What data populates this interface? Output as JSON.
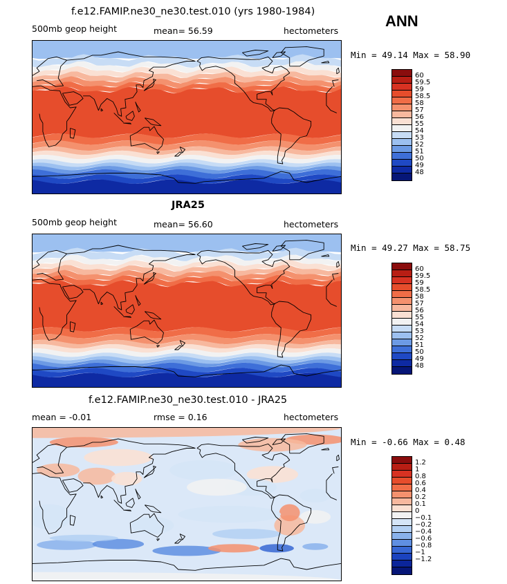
{
  "annual_label": "ANN",
  "panels": [
    {
      "title": "f.e12.FAMIP.ne30_ne30.test.010 (yrs 1980-1984)",
      "title_bold": false,
      "left_text": "500mb geop height",
      "center_text": "mean=  56.59",
      "right_text": "hectometers",
      "minmax": "Min =  49.14 Max =  58.90",
      "legend_labels": [
        "60",
        "59.5",
        "59",
        "58.5",
        "58",
        "57",
        "56",
        "55",
        "54",
        "53",
        "52",
        "51",
        "50",
        "49",
        "48"
      ]
    },
    {
      "title": "JRA25",
      "title_bold": true,
      "left_text": "500mb geop height",
      "center_text": "mean=  56.60",
      "right_text": "hectometers",
      "minmax": "Min =  49.27 Max =  58.75",
      "legend_labels": [
        "60",
        "59.5",
        "59",
        "58.5",
        "58",
        "57",
        "56",
        "55",
        "54",
        "53",
        "52",
        "51",
        "50",
        "49",
        "48"
      ]
    },
    {
      "title": "f.e12.FAMIP.ne30_ne30.test.010 - JRA25",
      "title_bold": false,
      "left_text": "mean =  -0.01",
      "center_text": "rmse =   0.16",
      "right_text": "hectometers",
      "minmax": "Min =  -0.66 Max =   0.48",
      "legend_labels": [
        "1.2",
        "1",
        "0.8",
        "0.6",
        "0.4",
        "0.2",
        "0.1",
        "0",
        "−0.1",
        "−0.2",
        "−0.4",
        "−0.6",
        "−0.8",
        "−1",
        "−1.2"
      ]
    }
  ],
  "colors": {
    "palette_height": [
      "#8a0d0d",
      "#b81e14",
      "#d73222",
      "#e64d2c",
      "#f06d47",
      "#f4916e",
      "#f7b89e",
      "#fae0d3",
      "#f2f2f2",
      "#c7dcf5",
      "#9cc0f0",
      "#6c9ae4",
      "#3e6fd8",
      "#1f49c4",
      "#0e2aa3",
      "#061677"
    ],
    "palette_diff": [
      "#8a0d0d",
      "#b81e14",
      "#d73222",
      "#e64d2c",
      "#f06d47",
      "#f4916e",
      "#f7b89e",
      "#fbe0d2",
      "#f2f2f2",
      "#d5e5f7",
      "#b3d0f3",
      "#89b2ec",
      "#5f8fe2",
      "#3767d4",
      "#1b43bf",
      "#0b259a",
      "#061677"
    ],
    "legend_swatches_height": [
      "#8a0d0d",
      "#b81e14",
      "#d73222",
      "#e64d2c",
      "#f06d47",
      "#f4916e",
      "#f7b89e",
      "#fae0d3",
      "#f2f2f2",
      "#c7dcf5",
      "#9cc0f0",
      "#6c9ae4",
      "#3e6fd8",
      "#1f49c4",
      "#0e2aa3",
      "#061677"
    ],
    "legend_swatches_diff": [
      "#8a0d0d",
      "#b81e14",
      "#d73222",
      "#e64d2c",
      "#f06d47",
      "#f4916e",
      "#f7b89e",
      "#fbe0d2",
      "#f2f2f2",
      "#d5e5f7",
      "#b3d0f3",
      "#89b2ec",
      "#5f8fe2",
      "#3767d4",
      "#1b43bf",
      "#0b259a",
      "#061677"
    ]
  }
}
